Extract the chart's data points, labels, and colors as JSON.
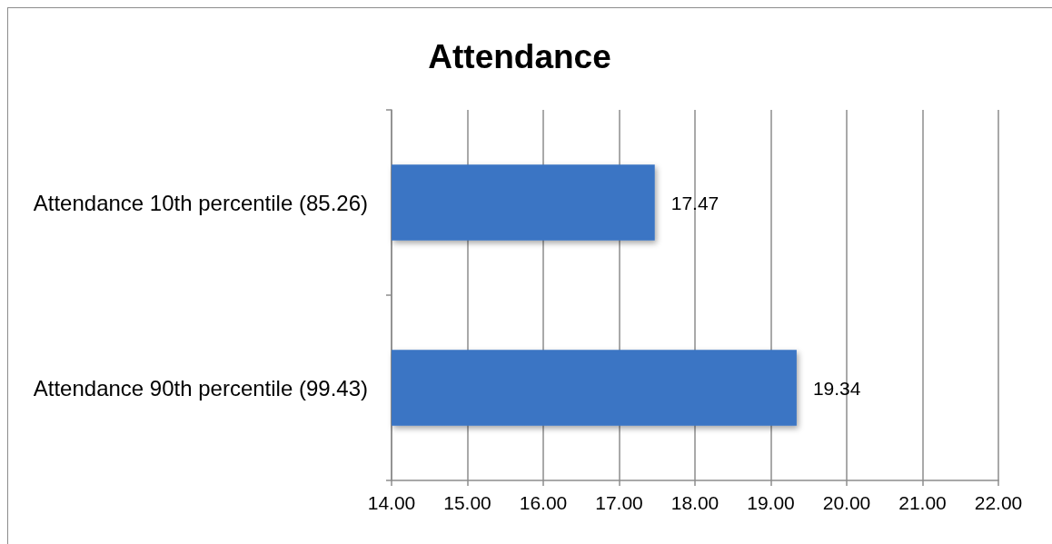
{
  "chart_data": {
    "type": "bar",
    "orientation": "horizontal",
    "title": "Attendance",
    "categories": [
      "Attendance 10th percentile (85.26)",
      "Attendance 90th percentile (99.43)"
    ],
    "values": [
      17.47,
      19.34
    ],
    "color": "#3a75c4",
    "xlim": [
      14,
      22
    ],
    "xticks": [
      {
        "value": 14,
        "label": "14.00"
      },
      {
        "value": 15,
        "label": "15.00"
      },
      {
        "value": 16,
        "label": "16.00"
      },
      {
        "value": 17,
        "label": "17.00"
      },
      {
        "value": 18,
        "label": "18.00"
      },
      {
        "value": 19,
        "label": "19.00"
      },
      {
        "value": 20,
        "label": "20.00"
      },
      {
        "value": 21,
        "label": "21.00"
      },
      {
        "value": 22,
        "label": "22.00"
      }
    ],
    "grid": "x",
    "data_labels": true
  }
}
